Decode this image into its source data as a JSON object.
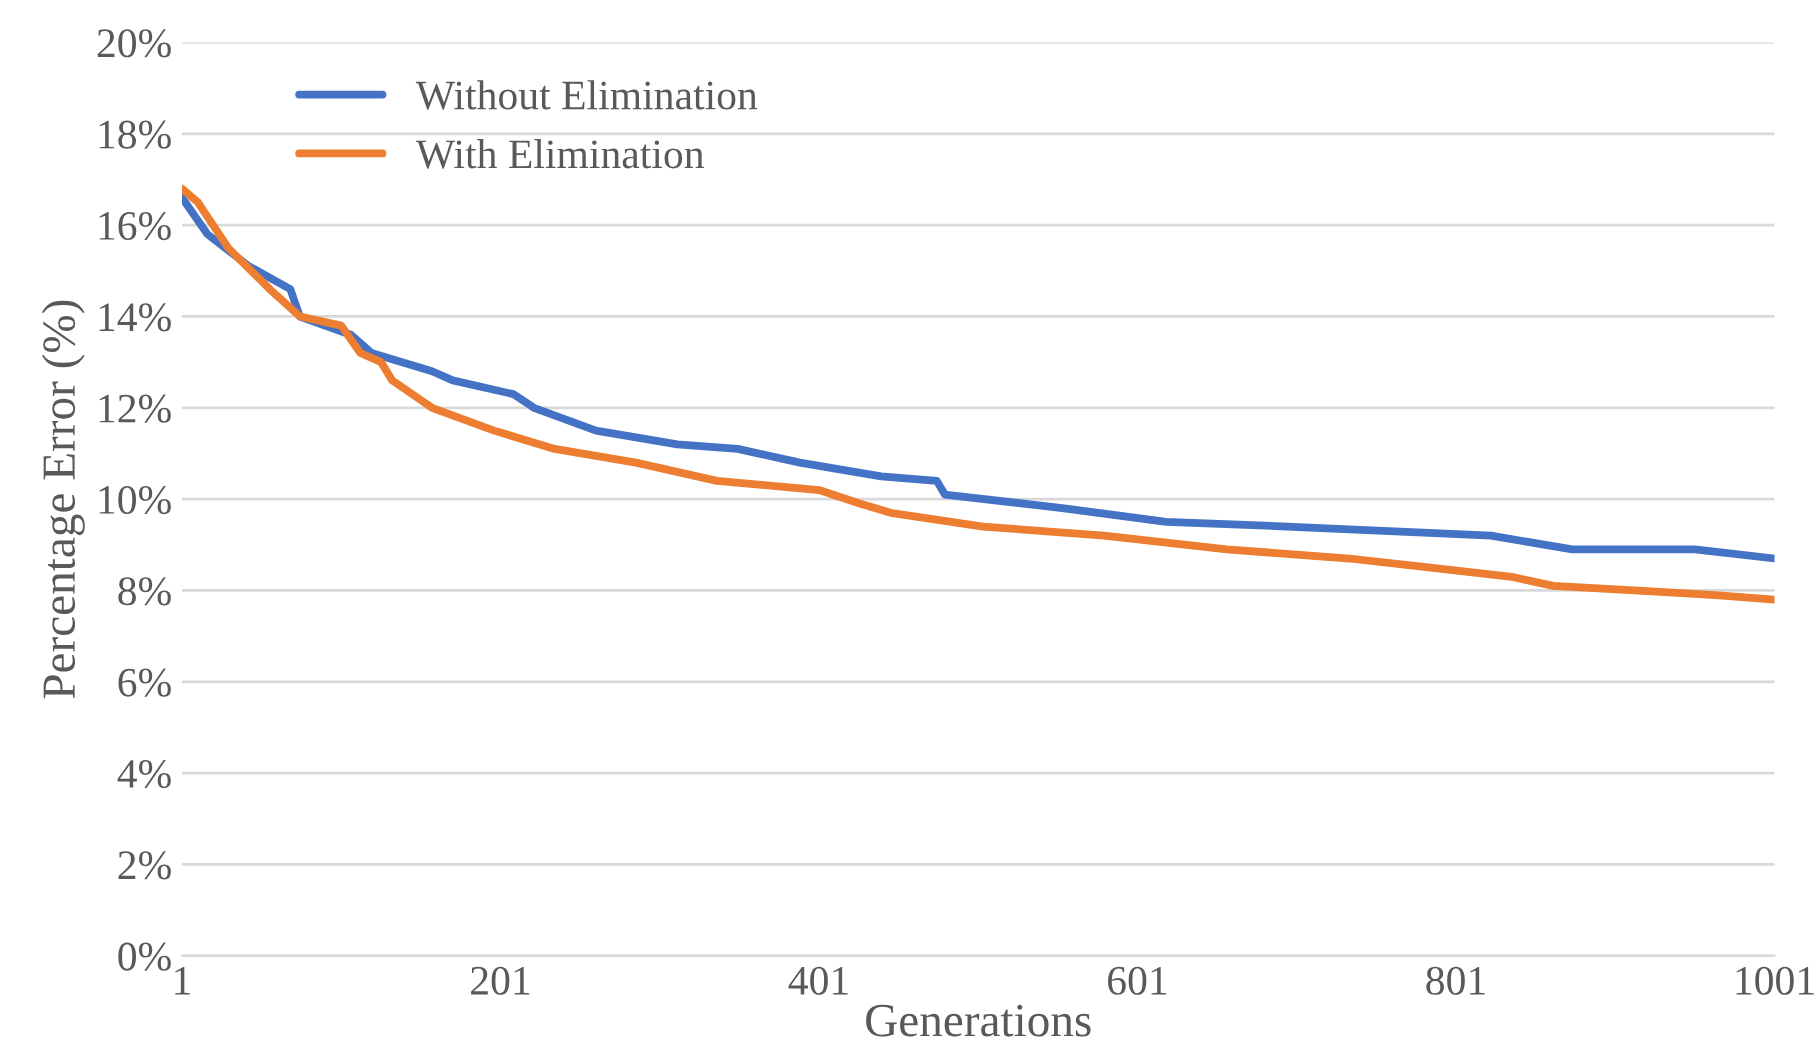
{
  "chart_data": {
    "type": "line",
    "xlabel": "Generations",
    "ylabel": "Percentage Error (%)",
    "xlim": [
      1,
      1001
    ],
    "xticks": [
      1,
      201,
      401,
      601,
      801,
      1001
    ],
    "ylim": [
      0,
      20
    ],
    "yticks": [
      {
        "value": 0,
        "label": "0%"
      },
      {
        "value": 2,
        "label": "2%"
      },
      {
        "value": 4,
        "label": "4%"
      },
      {
        "value": 6,
        "label": "6%"
      },
      {
        "value": 8,
        "label": "8%"
      },
      {
        "value": 10,
        "label": "10%"
      },
      {
        "value": 12,
        "label": "12%"
      },
      {
        "value": 14,
        "label": "14%"
      },
      {
        "value": 16,
        "label": "16%"
      },
      {
        "value": 18,
        "label": "18%"
      },
      {
        "value": 20,
        "label": "20%"
      }
    ],
    "grid": "y",
    "legend": "top left",
    "marker": "none",
    "line_style": "solid",
    "series": [
      {
        "name": "Without Elimination",
        "color": "#4472c4",
        "x": [
          1,
          17,
          43,
          69,
          75,
          107,
          120,
          158,
          171,
          209,
          222,
          261,
          312,
          350,
          389,
          440,
          475,
          480,
          555,
          619,
          695,
          759,
          823,
          874,
          951,
          1001
        ],
        "values": [
          16.6,
          15.8,
          15.1,
          14.6,
          14.0,
          13.6,
          13.2,
          12.8,
          12.6,
          12.3,
          12.0,
          11.5,
          11.2,
          11.1,
          10.8,
          10.5,
          10.4,
          10.1,
          9.8,
          9.5,
          9.4,
          9.3,
          9.2,
          8.9,
          8.9,
          8.7
        ]
      },
      {
        "name": "With Elimination",
        "color": "#ed7d31",
        "x": [
          1,
          11,
          30,
          56,
          75,
          101,
          113,
          126,
          133,
          158,
          197,
          235,
          286,
          337,
          401,
          427,
          446,
          504,
          580,
          657,
          734,
          785,
          836,
          862,
          913,
          964,
          1001
        ],
        "values": [
          16.8,
          16.5,
          15.5,
          14.6,
          14.0,
          13.8,
          13.2,
          13.0,
          12.6,
          12.0,
          11.5,
          11.1,
          10.8,
          10.4,
          10.2,
          9.9,
          9.7,
          9.4,
          9.2,
          8.9,
          8.7,
          8.5,
          8.3,
          8.1,
          8.0,
          7.9,
          7.8
        ]
      }
    ]
  }
}
